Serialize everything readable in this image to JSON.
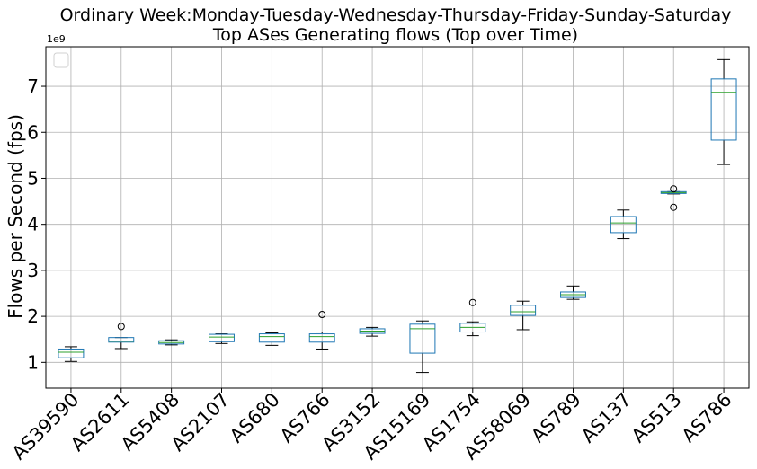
{
  "chart_data": {
    "type": "box",
    "title": "Ordinary Week:Monday-Tuesday-Wednesday-Thursday-Friday-Sunday-Saturday",
    "subtitle": "Top ASes Generating flows (Top over Time)",
    "ylabel": "Flows per Second (fps)",
    "y_exponent_label": "1e9",
    "y_scale": 1000000000,
    "ylim": [
      0.44,
      7.86
    ],
    "yticks": [
      1,
      2,
      3,
      4,
      5,
      6,
      7
    ],
    "grid": true,
    "legend": "top-left (empty)",
    "colors": {
      "box": "#1f77b4",
      "median": "#2ca02c",
      "whisker": "#000000"
    },
    "categories": [
      "AS39590",
      "AS2611",
      "AS5408",
      "AS2107",
      "AS680",
      "AS766",
      "AS3152",
      "AS15169",
      "AS1754",
      "AS58069",
      "AS789",
      "AS137",
      "AS513",
      "AS786"
    ],
    "boxes": [
      {
        "min": 1.02,
        "q1": 1.1,
        "median": 1.22,
        "q3": 1.29,
        "max": 1.34,
        "outliers": []
      },
      {
        "min": 1.3,
        "q1": 1.44,
        "median": 1.46,
        "q3": 1.54,
        "max": 1.54,
        "outliers": [
          1.78
        ]
      },
      {
        "min": 1.38,
        "q1": 1.4,
        "median": 1.43,
        "q3": 1.47,
        "max": 1.49,
        "outliers": []
      },
      {
        "min": 1.41,
        "q1": 1.45,
        "median": 1.55,
        "q3": 1.61,
        "max": 1.62,
        "outliers": []
      },
      {
        "min": 1.37,
        "q1": 1.44,
        "median": 1.56,
        "q3": 1.62,
        "max": 1.64,
        "outliers": []
      },
      {
        "min": 1.29,
        "q1": 1.44,
        "median": 1.56,
        "q3": 1.62,
        "max": 1.66,
        "outliers": [
          2.04
        ]
      },
      {
        "min": 1.57,
        "q1": 1.63,
        "median": 1.68,
        "q3": 1.73,
        "max": 1.76,
        "outliers": []
      },
      {
        "min": 0.78,
        "q1": 1.2,
        "median": 1.73,
        "q3": 1.83,
        "max": 1.9,
        "outliers": []
      },
      {
        "min": 1.58,
        "q1": 1.66,
        "median": 1.76,
        "q3": 1.85,
        "max": 1.88,
        "outliers": [
          2.3
        ]
      },
      {
        "min": 1.71,
        "q1": 2.02,
        "median": 2.1,
        "q3": 2.24,
        "max": 2.33,
        "outliers": []
      },
      {
        "min": 2.37,
        "q1": 2.41,
        "median": 2.47,
        "q3": 2.53,
        "max": 2.66,
        "outliers": []
      },
      {
        "min": 3.69,
        "q1": 3.82,
        "median": 4.03,
        "q3": 4.17,
        "max": 4.31,
        "outliers": []
      },
      {
        "min": 4.66,
        "q1": 4.67,
        "median": 4.69,
        "q3": 4.71,
        "max": 4.71,
        "outliers": [
          4.37,
          4.77
        ]
      },
      {
        "min": 5.3,
        "q1": 5.83,
        "median": 6.87,
        "q3": 7.16,
        "max": 7.58,
        "outliers": []
      }
    ]
  }
}
